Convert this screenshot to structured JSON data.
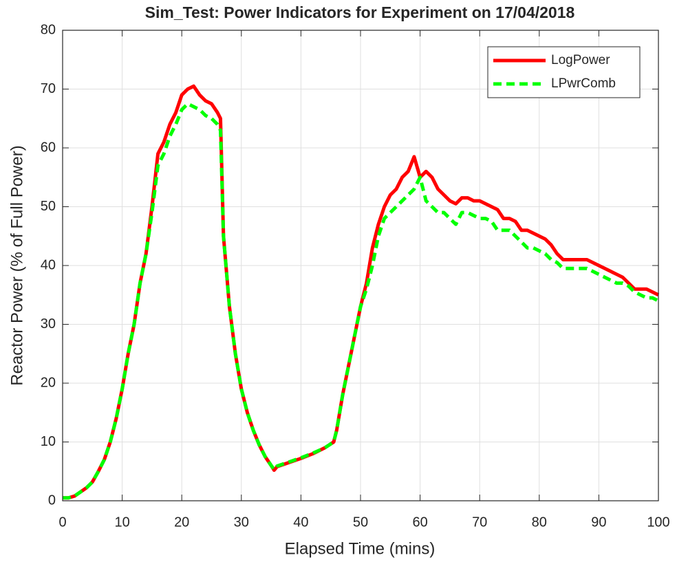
{
  "chart_data": {
    "type": "line",
    "title": "Sim_Test: Power Indicators for Experiment on 17/04/2018",
    "xlabel": "Elapsed Time (mins)",
    "ylabel": "Reactor Power (% of Full Power)",
    "x": [
      0,
      1,
      2,
      3,
      4,
      5,
      6,
      7,
      8,
      9,
      10,
      11,
      12,
      13,
      14,
      15,
      16,
      17,
      18,
      19,
      20,
      21,
      22,
      23,
      24,
      25,
      26,
      26.5,
      27,
      28,
      29,
      30,
      31,
      32,
      33,
      34,
      35,
      35.5,
      36,
      38,
      40,
      42,
      44,
      45.5,
      46,
      47,
      48,
      49,
      50,
      51,
      52,
      53,
      54,
      55,
      56,
      57,
      58,
      59,
      60,
      61,
      62,
      63,
      64,
      65,
      66,
      67,
      68,
      69,
      70,
      71,
      72,
      73,
      74,
      75,
      76,
      77,
      78,
      79,
      80,
      81,
      82,
      83,
      84,
      85,
      86,
      87,
      88,
      89,
      90,
      91,
      92,
      93,
      94,
      95,
      96,
      97,
      98,
      99,
      100
    ],
    "series": [
      {
        "name": "LogPower",
        "color": "#ff0000",
        "dash": false,
        "values": [
          0.5,
          0.5,
          0.8,
          1.5,
          2.2,
          3.2,
          5,
          7,
          10,
          14,
          19,
          25,
          30,
          37,
          42,
          50,
          59,
          61,
          64,
          66,
          69,
          70,
          70.5,
          69,
          68,
          67.5,
          66,
          65,
          45,
          33,
          25,
          19,
          15,
          12,
          9.5,
          7.5,
          6,
          5.2,
          5.8,
          6.5,
          7.2,
          8,
          9,
          10,
          12,
          18,
          23,
          28,
          33,
          37,
          43,
          47,
          50,
          52,
          53,
          55,
          56,
          58.5,
          55,
          56,
          55,
          53,
          52,
          51,
          50.5,
          51.5,
          51.5,
          51,
          51,
          50.5,
          50,
          49.5,
          48,
          48,
          47.5,
          46,
          46,
          45.5,
          45,
          44.5,
          43.5,
          42,
          41,
          41,
          41,
          41,
          41,
          40.5,
          40,
          39.5,
          39,
          38.5,
          38,
          37,
          36,
          36,
          36,
          35.5,
          35
        ]
      },
      {
        "name": "LPwrComb",
        "color": "#00ff00",
        "dash": true,
        "values": [
          0.5,
          0.5,
          0.8,
          1.5,
          2.2,
          3.2,
          5,
          7,
          10,
          14,
          19,
          25,
          30,
          37,
          42,
          49,
          57,
          59,
          62,
          64,
          66.5,
          67.5,
          67,
          66.5,
          65.5,
          65,
          64,
          63,
          45,
          33,
          25,
          19,
          15,
          12,
          9.5,
          7.5,
          6,
          5.3,
          5.9,
          6.6,
          7.3,
          8.1,
          9,
          10,
          12,
          18,
          23,
          28,
          33,
          36,
          40,
          45,
          48,
          49,
          50,
          51,
          52,
          53,
          55,
          51,
          50,
          49,
          49,
          48,
          47,
          49,
          49,
          48.5,
          48,
          48,
          47.5,
          46,
          46,
          46,
          45,
          44,
          43,
          43,
          42.5,
          42,
          41,
          40.5,
          39.5,
          39.5,
          39.5,
          39.5,
          39.5,
          39,
          38.5,
          38,
          37.5,
          37,
          37,
          36.5,
          35.5,
          35,
          34.5,
          34.5,
          34
        ]
      }
    ],
    "xlim": [
      0,
      100
    ],
    "xticks": [
      0,
      10,
      20,
      30,
      40,
      50,
      60,
      70,
      80,
      90,
      100
    ],
    "ylim": [
      0,
      80
    ],
    "yticks": [
      0,
      10,
      20,
      30,
      40,
      50,
      60,
      70,
      80
    ],
    "grid": true,
    "legend": "northeast"
  }
}
